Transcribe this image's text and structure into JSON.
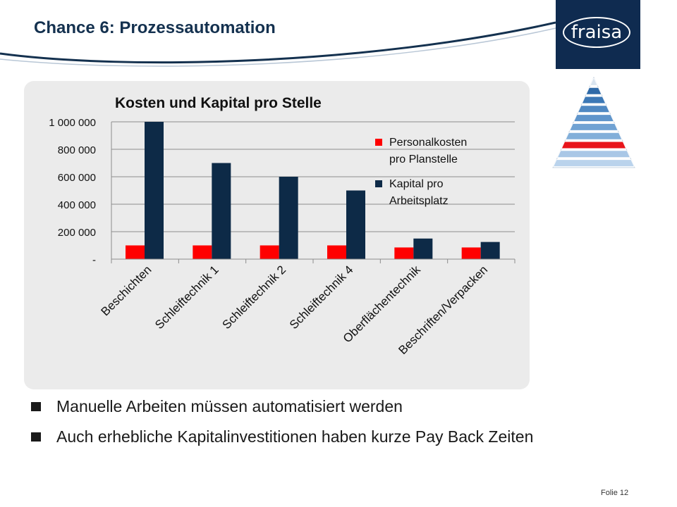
{
  "slide": {
    "title": "Chance 6: Prozessautomation",
    "logo_text": "fraisa",
    "footer": "Folie 12",
    "bullets": [
      "Manuelle Arbeiten müssen automatisiert werden",
      "Auch erhebliche Kapitalinvestitionen haben kurze Pay Back Zeiten"
    ]
  },
  "chart_data": {
    "type": "bar",
    "title": "Kosten und Kapital pro Stelle",
    "categories": [
      "Beschichten",
      "Schleiftechnik 1",
      "Schleiftechnik 2",
      "Schleiftechnik 4",
      "Oberflächentechnik",
      "Beschriften/Verpacken"
    ],
    "series": [
      {
        "name": "Personalkosten pro Planstelle",
        "legend_lines": [
          "Personalkosten",
          "pro Planstelle"
        ],
        "color": "#ff0000",
        "values": [
          100000,
          100000,
          100000,
          100000,
          85000,
          85000
        ]
      },
      {
        "name": "Kapital pro Arbeitsplatz",
        "legend_lines": [
          "Kapital pro",
          "Arbeitsplatz"
        ],
        "color": "#0d2a47",
        "values": [
          1000000,
          700000,
          600000,
          500000,
          150000,
          125000
        ]
      }
    ],
    "y_ticks": [
      {
        "value": 0,
        "label": "-"
      },
      {
        "value": 200000,
        "label": "200 000"
      },
      {
        "value": 400000,
        "label": "400 000"
      },
      {
        "value": 600000,
        "label": "600 000"
      },
      {
        "value": 800000,
        "label": "800 000"
      },
      {
        "value": 1000000,
        "label": "1 000 000"
      }
    ],
    "ylim": [
      0,
      1000000
    ],
    "grid": true,
    "legend_position": "right"
  },
  "colors": {
    "title": "#14314f",
    "logo_bg": "#0f2b50",
    "pyramid_highlight": "#e8151b"
  }
}
